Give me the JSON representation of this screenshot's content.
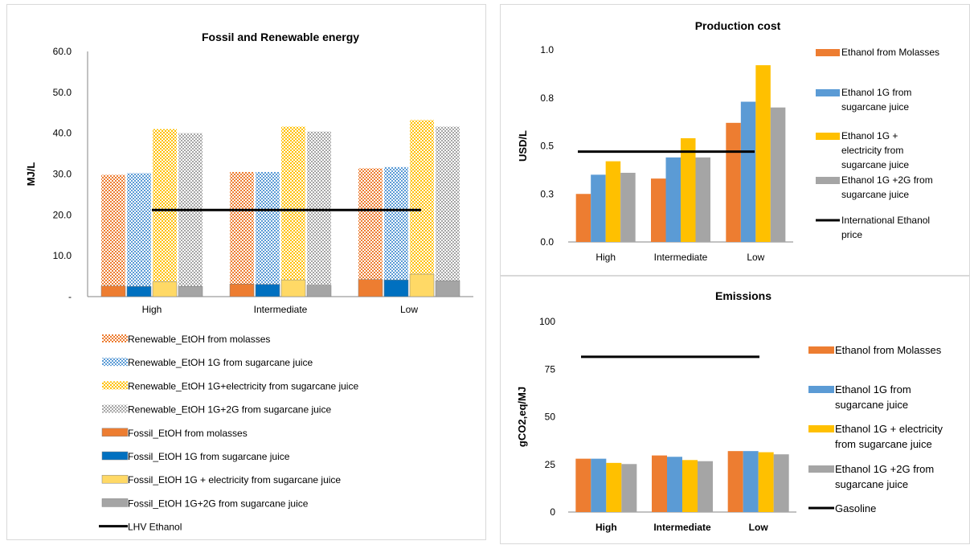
{
  "colors": {
    "molasses": "#ED7D31",
    "juice": "#5B9BD5",
    "elec": "#FFC000",
    "twog": "#A5A5A5",
    "line": "#000000",
    "fossil_molasses": "#ED7D31",
    "fossil_juice": "#0070C0",
    "fossil_elec": "#FFD966",
    "fossil_twog": "#A5A5A5"
  },
  "chart_data": [
    {
      "type": "bar",
      "title": "Fossil and Renewable energy",
      "ylabel": "MJ/L",
      "categories": [
        "High",
        "Intermediate",
        "Low"
      ],
      "ylim": [
        0,
        60
      ],
      "yticks": [
        "-",
        "10.0",
        "20.0",
        "30.0",
        "40.0",
        "50.0",
        "60.0"
      ],
      "series": [
        {
          "name": "Renewable_EtOH from molasses",
          "values": [
            29.8,
            30.5,
            31.4
          ]
        },
        {
          "name": "Renewable_EtOH 1G from sugarcane juice",
          "values": [
            30.2,
            30.5,
            31.7
          ]
        },
        {
          "name": "Renewable_EtOH 1G+electricity from sugarcane juice",
          "values": [
            41.0,
            41.6,
            43.2
          ]
        },
        {
          "name": "Renewable_EtOH 1G+2G from sugarcane juice",
          "values": [
            40.0,
            40.4,
            41.6
          ]
        },
        {
          "name": "Fossil_EtOH from molasses",
          "values": [
            2.6,
            3.1,
            4.2
          ]
        },
        {
          "name": "Fossil_EtOH 1G from sugarcane juice",
          "values": [
            2.5,
            3.0,
            4.1
          ]
        },
        {
          "name": "Fossil_EtOH 1G + electricity from sugarcane juice",
          "values": [
            3.6,
            4.1,
            5.5
          ]
        },
        {
          "name": "Fossil_EtOH 1G+2G from sugarcane juice",
          "values": [
            2.5,
            2.8,
            3.9
          ]
        },
        {
          "name": "LHV Ethanol",
          "values": [
            21.2,
            21.2,
            21.2
          ]
        }
      ]
    },
    {
      "type": "bar",
      "title": "Production cost",
      "ylabel": "USD/L",
      "categories": [
        "High",
        "Intermediate",
        "Low"
      ],
      "ylim": [
        0,
        1.0
      ],
      "yticks": [
        "0.0",
        "0.3",
        "0.5",
        "0.8",
        "1.0"
      ],
      "series": [
        {
          "name": "Ethanol from Molasses",
          "values": [
            0.25,
            0.33,
            0.62
          ]
        },
        {
          "name": "Ethanol 1G from sugarcane juice",
          "values": [
            0.35,
            0.44,
            0.73
          ]
        },
        {
          "name": "Ethanol 1G + electricity from sugarcane juice",
          "values": [
            0.42,
            0.54,
            0.92
          ]
        },
        {
          "name": "Ethanol 1G +2G from sugarcane juice",
          "values": [
            0.36,
            0.44,
            0.7
          ]
        },
        {
          "name": "International Ethanol price",
          "values": [
            0.47,
            0.47,
            0.47
          ]
        }
      ]
    },
    {
      "type": "bar",
      "title": "Emissions",
      "ylabel": "gCO2,eq/MJ",
      "categories": [
        "High",
        "Intermediate",
        "Low"
      ],
      "ylim": [
        0,
        100
      ],
      "yticks": [
        "0",
        "25",
        "50",
        "75",
        "100"
      ],
      "series": [
        {
          "name": "Ethanol from Molasses",
          "values": [
            28.0,
            29.7,
            32.0
          ]
        },
        {
          "name": "Ethanol 1G from sugarcane juice",
          "values": [
            28.0,
            29.0,
            32.0
          ]
        },
        {
          "name": "Ethanol 1G + electricity from sugarcane juice",
          "values": [
            25.8,
            27.3,
            31.4
          ]
        },
        {
          "name": "Ethanol 1G +2G from sugarcane juice",
          "values": [
            25.2,
            26.7,
            30.3
          ]
        },
        {
          "name": "Gasoline",
          "values": [
            81.5,
            81.5,
            81.5
          ]
        }
      ]
    }
  ]
}
